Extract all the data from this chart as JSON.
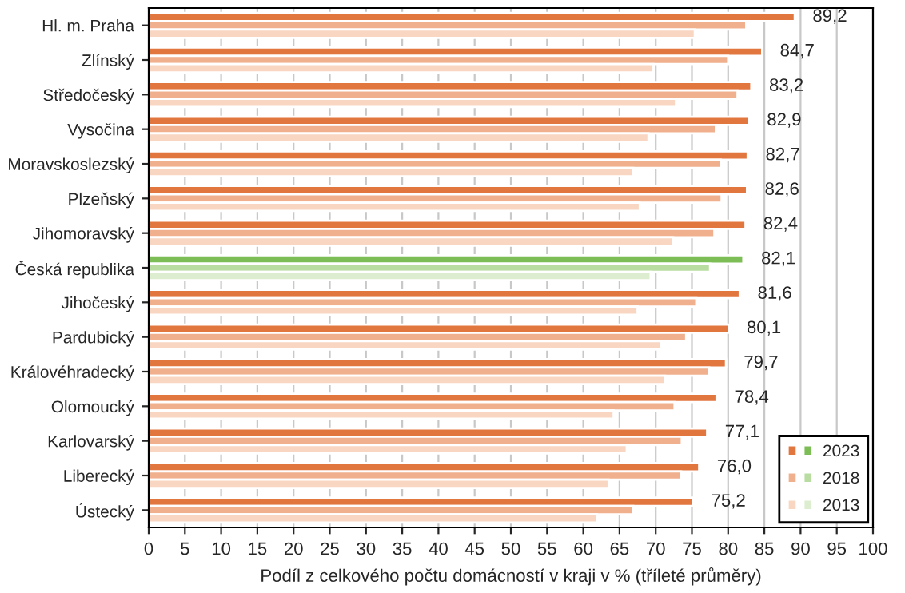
{
  "chart_data": {
    "type": "bar",
    "orientation": "horizontal",
    "xlabel": "Podíl z celkového počtu domácností v kraji v % (tříleté průměry)",
    "categories": [
      "Hl. m. Praha",
      "Zlínský",
      "Středočeský",
      "Vysočina",
      "Moravskoslezský",
      "Plzeňský",
      "Jihomoravský",
      "Česká republika",
      "Jihočeský",
      "Pardubický",
      "Královéhradecký",
      "Olomoucký",
      "Karlovarský",
      "Liberecký",
      "Ústecký"
    ],
    "series": [
      {
        "name": "2023",
        "color": "#e2763f",
        "colors": [
          "#e2763f",
          "#e2763f",
          "#e2763f",
          "#e2763f",
          "#e2763f",
          "#e2763f",
          "#e2763f",
          "#7dbd56",
          "#e2763f",
          "#e2763f",
          "#e2763f",
          "#e2763f",
          "#e2763f",
          "#e2763f",
          "#e2763f"
        ],
        "values": [
          89.2,
          84.7,
          83.2,
          82.9,
          82.7,
          82.6,
          82.4,
          82.1,
          81.6,
          80.1,
          79.7,
          78.4,
          77.1,
          76.0,
          75.2
        ],
        "value_labels": [
          "89,2",
          "84,7",
          "83,2",
          "82,9",
          "82,7",
          "82,6",
          "82,4",
          "82,1",
          "81,6",
          "80,1",
          "79,7",
          "78,4",
          "77,1",
          "76,0",
          "75,2"
        ]
      },
      {
        "name": "2018",
        "color": "#f0b08e",
        "colors": [
          "#f0b08e",
          "#f0b08e",
          "#f0b08e",
          "#f0b08e",
          "#f0b08e",
          "#f0b08e",
          "#f0b08e",
          "#b9dca1",
          "#f0b08e",
          "#f0b08e",
          "#f0b08e",
          "#f0b08e",
          "#f0b08e",
          "#f0b08e",
          "#f0b08e"
        ],
        "values": [
          82.5,
          80.0,
          81.3,
          78.3,
          79.0,
          79.1,
          78.1,
          77.5,
          75.6,
          74.2,
          77.4,
          72.6,
          73.6,
          73.5,
          66.9
        ]
      },
      {
        "name": "2013",
        "color": "#f8d6c2",
        "colors": [
          "#f8d6c2",
          "#f8d6c2",
          "#f8d6c2",
          "#f8d6c2",
          "#f8d6c2",
          "#f8d6c2",
          "#f8d6c2",
          "#dcedd0",
          "#f8d6c2",
          "#f8d6c2",
          "#f8d6c2",
          "#f8d6c2",
          "#f8d6c2",
          "#f8d6c2",
          "#f8d6c2"
        ],
        "values": [
          75.4,
          69.7,
          72.8,
          69.0,
          66.9,
          67.8,
          72.4,
          69.3,
          67.5,
          70.7,
          71.3,
          64.2,
          66.0,
          63.5,
          61.9
        ]
      }
    ],
    "xlim": [
      0,
      100
    ],
    "xticks": [
      0,
      5,
      10,
      15,
      20,
      25,
      30,
      35,
      40,
      45,
      50,
      55,
      60,
      65,
      70,
      75,
      80,
      85,
      90,
      95,
      100
    ],
    "grid": "x",
    "legend": "bottom right"
  }
}
